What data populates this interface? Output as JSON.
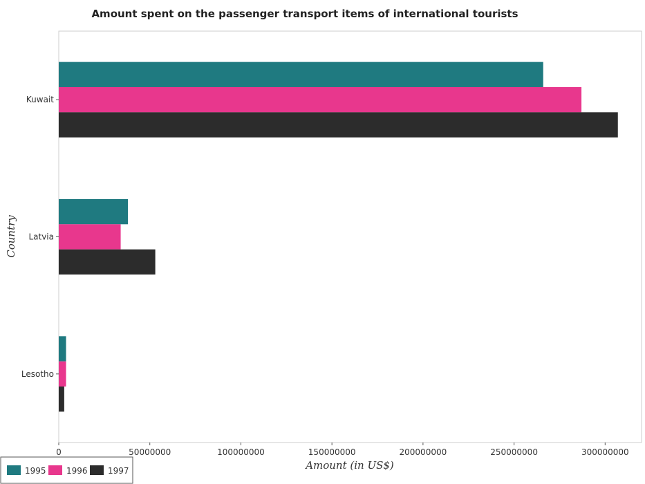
{
  "chart_data": {
    "type": "bar",
    "orientation": "horizontal",
    "title": "Amount spent on the passenger transport items of international tourists",
    "xlabel": "Amount (in US$)",
    "ylabel": "Country",
    "categories": [
      "Kuwait",
      "Latvia",
      "Lesotho"
    ],
    "series": [
      {
        "name": "1995",
        "color": "#1f7a80",
        "values": [
          266000000,
          38000000,
          4000000
        ]
      },
      {
        "name": "1996",
        "color": "#e8378d",
        "values": [
          287000000,
          34000000,
          4000000
        ]
      },
      {
        "name": "1997",
        "color": "#2c2c2c",
        "values": [
          307000000,
          53000000,
          3000000
        ]
      }
    ],
    "xlim": [
      0,
      320000000
    ],
    "xticks": [
      0,
      50000000,
      100000000,
      150000000,
      200000000,
      250000000,
      300000000
    ],
    "xtick_labels": [
      "0",
      "50000000",
      "100000000",
      "150000000",
      "200000000",
      "250000000",
      "300000000"
    ],
    "grid": false,
    "legend_position": "bottom-left"
  }
}
